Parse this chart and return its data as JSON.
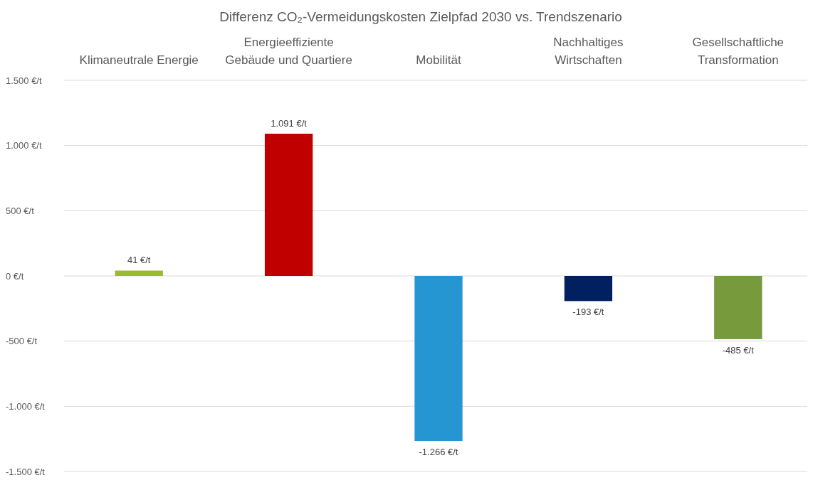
{
  "chart_data": {
    "type": "bar",
    "title": "Differenz CO₂-Vermeidungskosten Zielpfad 2030 vs. Trendszenario",
    "categories": [
      "Klimaneutrale Energie",
      "Energieeffiziente\nGebäude und Quartiere",
      "Mobilität",
      "Nachhaltiges\nWirtschaften",
      "Gesellschaftliche\nTransformation"
    ],
    "values": [
      41,
      1091,
      -1266,
      -193,
      -485
    ],
    "colors": [
      "#9bbb2f",
      "#c00000",
      "#2596d1",
      "#002060",
      "#779a3c"
    ],
    "value_labels": [
      "41 €/t",
      "1.091 €/t",
      "-1.266 €/t",
      "-193 €/t",
      "-485 €/t"
    ],
    "ylim": [
      -1500,
      1500
    ],
    "yticks": [
      {
        "value": -1500,
        "label": "-1.500 €/t"
      },
      {
        "value": -1000,
        "label": "-1.000 €/t"
      },
      {
        "value": -500,
        "label": "-500 €/t"
      },
      {
        "value": 0,
        "label": "0 €/t"
      },
      {
        "value": 500,
        "label": "500 €/t"
      },
      {
        "value": 1000,
        "label": "1.000 €/t"
      },
      {
        "value": 1500,
        "label": "1.500 €/t"
      }
    ],
    "grid": "y"
  }
}
